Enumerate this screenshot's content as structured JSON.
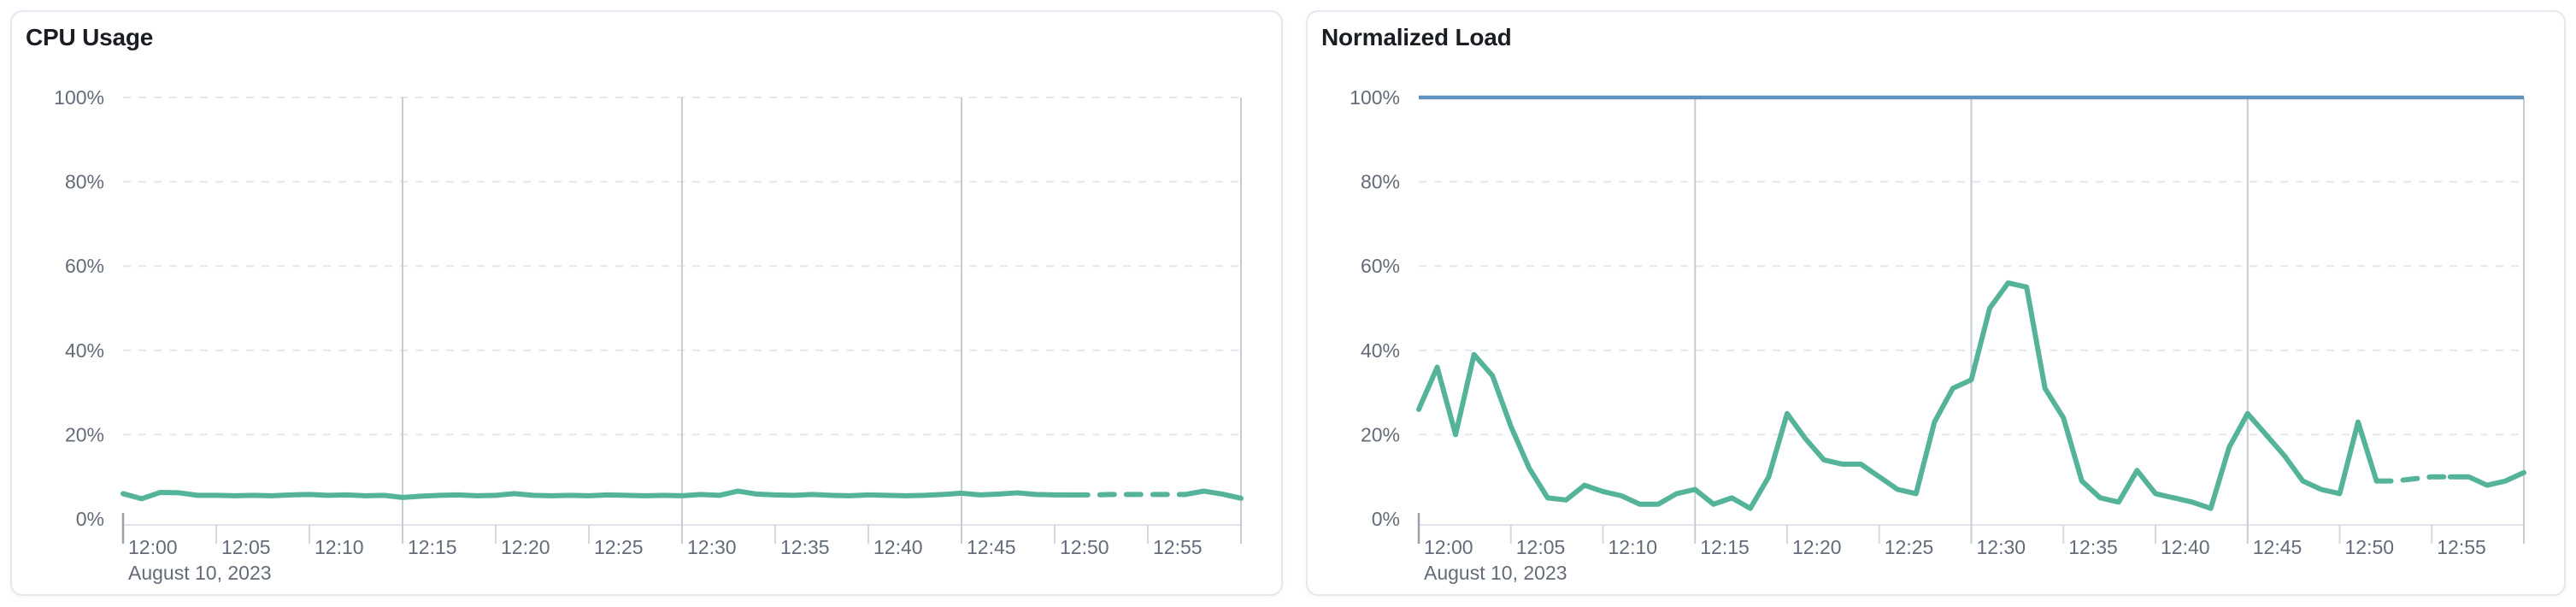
{
  "colors": {
    "series_green": "#54b399",
    "threshold_blue": "#6092c0",
    "grid_dashed": "#e4e7ee",
    "grid_solid_vertical": "#c7ccd4",
    "axis_line": "#e1e4ea",
    "tick_minor": "#d5d9df",
    "tick_origin": "#98a1ad",
    "label_gray": "#646b78",
    "title_dark": "#1a1d23",
    "card_border": "#e3e8f1"
  },
  "panels": [
    {
      "title": "CPU Usage",
      "chart_data": {
        "type": "line",
        "xlabel": "",
        "ylabel": "",
        "ylim": [
          0,
          100
        ],
        "y_tick_labels": [
          "0%",
          "20%",
          "40%",
          "60%",
          "80%",
          "100%"
        ],
        "x_tick_labels": [
          "12:00",
          "12:05",
          "12:10",
          "12:15",
          "12:20",
          "12:25",
          "12:30",
          "12:35",
          "12:40",
          "12:45",
          "12:50",
          "12:55"
        ],
        "x_axis_secondary_label": "August 10, 2023",
        "x_range_minutes": [
          0,
          60
        ],
        "x_tick_interval_minutes": 5,
        "grid": {
          "h_dashed_pct": [
            20,
            40,
            60,
            80,
            100
          ],
          "v_solid_minutes": [
            15,
            30,
            45,
            60
          ]
        },
        "series": [
          {
            "name": "cpu-usage",
            "color": "#54b399",
            "start_time": "12:00",
            "interval_minutes": 1,
            "unit": "%",
            "values": [
              6,
              4.8,
              6.3,
              6.2,
              5.6,
              5.6,
              5.5,
              5.6,
              5.5,
              5.7,
              5.8,
              5.6,
              5.7,
              5.5,
              5.6,
              5.1,
              5.4,
              5.6,
              5.7,
              5.5,
              5.6,
              6,
              5.6,
              5.5,
              5.6,
              5.5,
              5.7,
              5.6,
              5.5,
              5.6,
              5.5,
              5.8,
              5.6,
              6.6,
              5.9,
              5.7,
              5.6,
              5.8,
              5.6,
              5.5,
              5.7,
              5.6,
              5.5,
              5.6,
              5.8,
              6.1,
              5.7,
              5.9,
              6.2,
              5.8,
              5.7,
              5.7,
              5.7,
              5.8,
              5.8,
              5.8,
              5.8,
              5.8,
              6.6,
              5.9,
              4.9
            ],
            "dashed_segment_indices": [
              51,
              57
            ]
          }
        ]
      }
    },
    {
      "title": "Normalized Load",
      "chart_data": {
        "type": "line",
        "xlabel": "",
        "ylabel": "",
        "ylim": [
          0,
          100
        ],
        "y_tick_labels": [
          "0%",
          "20%",
          "40%",
          "60%",
          "80%",
          "100%"
        ],
        "x_tick_labels": [
          "12:00",
          "12:05",
          "12:10",
          "12:15",
          "12:20",
          "12:25",
          "12:30",
          "12:35",
          "12:40",
          "12:45",
          "12:50",
          "12:55"
        ],
        "x_axis_secondary_label": "August 10, 2023",
        "x_range_minutes": [
          0,
          60
        ],
        "x_tick_interval_minutes": 5,
        "grid": {
          "h_dashed_pct": [
            20,
            40,
            60,
            80,
            100
          ],
          "v_solid_minutes": [
            15,
            30,
            45,
            60
          ]
        },
        "threshold_line": {
          "value": 100,
          "color": "#6092c0"
        },
        "series": [
          {
            "name": "normalized-load",
            "color": "#54b399",
            "start_time": "12:00",
            "interval_minutes": 1,
            "unit": "%",
            "values": [
              26,
              36,
              20,
              39,
              34,
              22,
              12,
              5,
              4.5,
              8,
              6.5,
              5.5,
              3.5,
              3.5,
              6,
              7,
              3.5,
              5,
              2.5,
              10,
              25,
              19,
              14,
              13,
              13,
              10,
              7,
              6,
              23,
              31,
              33,
              50,
              56,
              55,
              31,
              24,
              9,
              5,
              4,
              11.5,
              6,
              5,
              4,
              2.5,
              17,
              25,
              20,
              15,
              9,
              7,
              6,
              23,
              9,
              9,
              9.5,
              10,
              10,
              10,
              8,
              9,
              11
            ],
            "dashed_segment_indices": [
              52,
              56
            ]
          }
        ]
      }
    }
  ]
}
